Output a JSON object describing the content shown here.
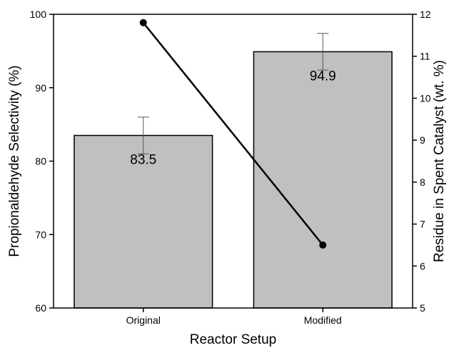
{
  "chart_data": {
    "type": "bar",
    "categories": [
      "Original",
      "Modified"
    ],
    "xlabel": "Reactor Setup",
    "series": [
      {
        "name": "Propionaldehyde Selectivity (%)",
        "type": "bar",
        "axis": "left",
        "values": [
          83.5,
          94.9
        ],
        "value_labels": [
          "83.5",
          "94.9"
        ],
        "error": [
          2.5,
          2.5
        ],
        "color": "#c0c0c0"
      },
      {
        "name": "Residue in Spent Catalyst (wt. %)",
        "type": "line",
        "axis": "right",
        "values": [
          11.8,
          6.5
        ],
        "color": "#000000"
      }
    ],
    "ylabel": "Propionaldehyde Selectivity (%)",
    "ylim": [
      60,
      100
    ],
    "yticks": [
      "60",
      "70",
      "80",
      "90",
      "100"
    ],
    "y2label": "Residue in Spent Catalyst (wt. %)",
    "y2lim": [
      5,
      12
    ],
    "y2ticks": [
      "5",
      "6",
      "7",
      "8",
      "9",
      "10",
      "11",
      "12"
    ],
    "grid": false,
    "legend": "none"
  }
}
